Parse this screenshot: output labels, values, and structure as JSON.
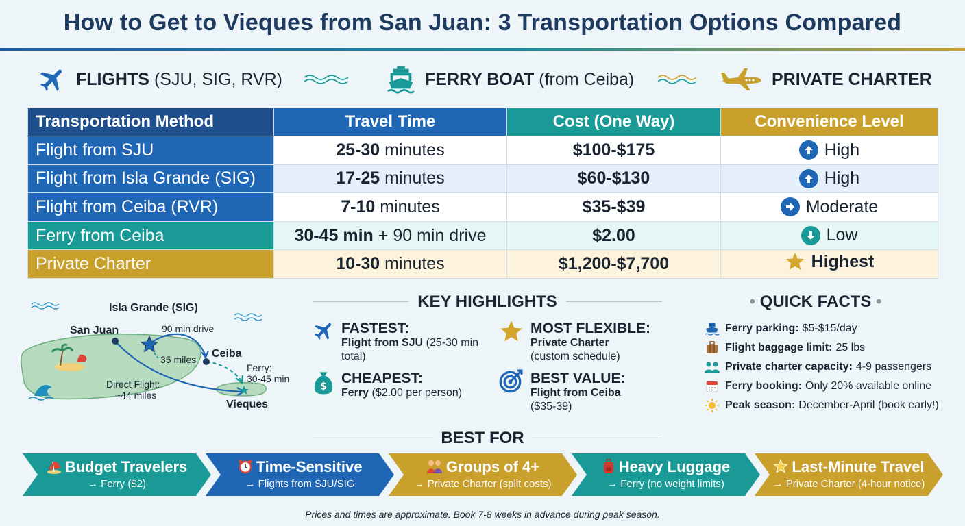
{
  "title": "How to Get to Vieques from San Juan: 3 Transportation Options Compared",
  "categories": [
    {
      "label": "FLIGHTS",
      "suffix": "(SJU, SIG, RVR)",
      "icon": "airplane-icon"
    },
    {
      "label": "FERRY BOAT",
      "suffix": "(from Ceiba)",
      "icon": "ferry-icon"
    },
    {
      "label": "PRIVATE CHARTER",
      "suffix": "",
      "icon": "private-plane-icon"
    }
  ],
  "table": {
    "headers": [
      "Transportation Method",
      "Travel Time",
      "Cost (One Way)",
      "Convenience Level"
    ],
    "rows": [
      {
        "method": "Flight from SJU",
        "time_bold": "25-30",
        "time_rest": "minutes",
        "cost": "$100-$175",
        "convenience": "High",
        "icon": "arrow-up-icon"
      },
      {
        "method": "Flight from Isla Grande (SIG)",
        "time_bold": "17-25",
        "time_rest": "minutes",
        "cost": "$60-$130",
        "convenience": "High",
        "icon": "arrow-up-icon"
      },
      {
        "method": "Flight from Ceiba (RVR)",
        "time_bold": "7-10",
        "time_rest": "minutes",
        "cost": "$35-$39",
        "convenience": "Moderate",
        "icon": "arrow-right-icon"
      },
      {
        "method": "Ferry from Ceiba",
        "time_bold": "30-45 min",
        "time_rest": "+ 90 min drive",
        "cost": "$2.00",
        "convenience": "Low",
        "icon": "arrow-down-icon"
      },
      {
        "method": "Private Charter",
        "time_bold": "10-30",
        "time_rest": "minutes",
        "cost": "$1,200-$7,700",
        "convenience": "Highest",
        "icon": "star-icon"
      }
    ],
    "colors": {
      "header": [
        "#1e4f8c",
        "#1f66b5",
        "#1a9a97",
        "#c9a02c"
      ],
      "method": [
        "#1f66b5",
        "#1f66b5",
        "#1f66b5",
        "#1a9a97",
        "#c9a02c"
      ],
      "rowbg": [
        "#ffffff",
        "#e6f0fa",
        "#ffffff",
        "#e4f7f4",
        "#fdf3dc"
      ]
    }
  },
  "map": {
    "labels": {
      "isla_grande": "Isla Grande (SIG)",
      "san_juan": "San Juan",
      "drive": "90 min drive",
      "ceiba": "Ceiba",
      "miles35": "35 miles",
      "ferry": "Ferry:",
      "ferry_time": "30-45 min",
      "direct": "Direct Flight:",
      "direct_miles": "~44 miles",
      "vieques": "Vieques"
    }
  },
  "highlights": {
    "heading": "KEY HIGHLIGHTS",
    "items": [
      {
        "title": "FASTEST:",
        "bold": "Flight from SJU",
        "rest": "(25-30 min total)",
        "icon": "airplane-icon"
      },
      {
        "title": "MOST FLEXIBLE:",
        "bold": "Private Charter",
        "rest": "(custom schedule)",
        "icon": "star-icon"
      },
      {
        "title": "CHEAPEST:",
        "bold": "Ferry",
        "rest": "($2.00 per person)",
        "icon": "money-bag-icon"
      },
      {
        "title": "BEST VALUE:",
        "bold": "Flight from Ceiba",
        "rest": "($35-39)",
        "icon": "target-icon"
      }
    ]
  },
  "quick_facts": {
    "heading": "QUICK FACTS",
    "items": [
      {
        "label": "Ferry parking:",
        "value": "$5-$15/day",
        "icon": "ship-icon"
      },
      {
        "label": "Flight baggage limit:",
        "value": "25 lbs",
        "icon": "luggage-icon"
      },
      {
        "label": "Private charter capacity:",
        "value": "4-9 passengers",
        "icon": "people-icon"
      },
      {
        "label": "Ferry booking:",
        "value": "Only 20% available online",
        "icon": "calendar-icon"
      },
      {
        "label": "Peak season:",
        "value": "December-April (book early!)",
        "icon": "sun-icon"
      }
    ]
  },
  "best_for": {
    "heading": "BEST FOR",
    "items": [
      {
        "title": "Budget Travelers",
        "sub": "→ Ferry ($2)",
        "icon": "beach-icon",
        "color": "#1a9a97"
      },
      {
        "title": "Time-Sensitive",
        "sub": "→ Flights from SJU/SIG",
        "icon": "alarm-clock-icon",
        "color": "#1f66b5"
      },
      {
        "title": "Groups of 4+",
        "sub": "→ Private Charter (split costs)",
        "icon": "family-icon",
        "color": "#c9a02c"
      },
      {
        "title": "Heavy Luggage",
        "sub": "→ Ferry (no weight limits)",
        "icon": "backpack-icon",
        "color": "#1a9a97"
      },
      {
        "title": "Last-Minute Travel",
        "sub": "→ Private Charter (4-hour notice)",
        "icon": "star-icon",
        "color": "#c9a02c"
      }
    ]
  },
  "footnote": "Prices and times are approximate. Book 7-8 weeks in advance during peak season."
}
